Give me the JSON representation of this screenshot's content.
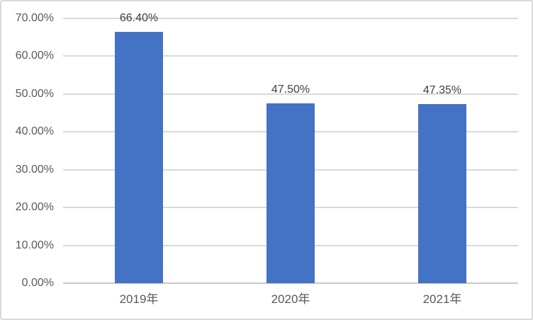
{
  "chart_data": {
    "type": "bar",
    "title": "",
    "xlabel": "",
    "ylabel": "",
    "categories": [
      "2019年",
      "2020年",
      "2021年"
    ],
    "values": [
      66.4,
      47.5,
      47.35
    ],
    "data_labels": [
      "66.40%",
      "47.50%",
      "47.35%"
    ],
    "y_tick_labels": [
      "0.00%",
      "10.00%",
      "20.00%",
      "30.00%",
      "40.00%",
      "50.00%",
      "60.00%",
      "70.00%"
    ],
    "ylim": [
      0,
      70
    ],
    "y_step": 10,
    "grid": true,
    "legend": "none",
    "colors": {
      "bar": "#4472C4",
      "gridline": "#D9D9D9",
      "axis_line": "#C9C9C9",
      "chart_border": "#D9D9D9",
      "y_tick_label_text": "#595959",
      "x_tick_label_text": "#595959",
      "data_label_text": "#404040",
      "background": "#FFFFFF"
    }
  }
}
